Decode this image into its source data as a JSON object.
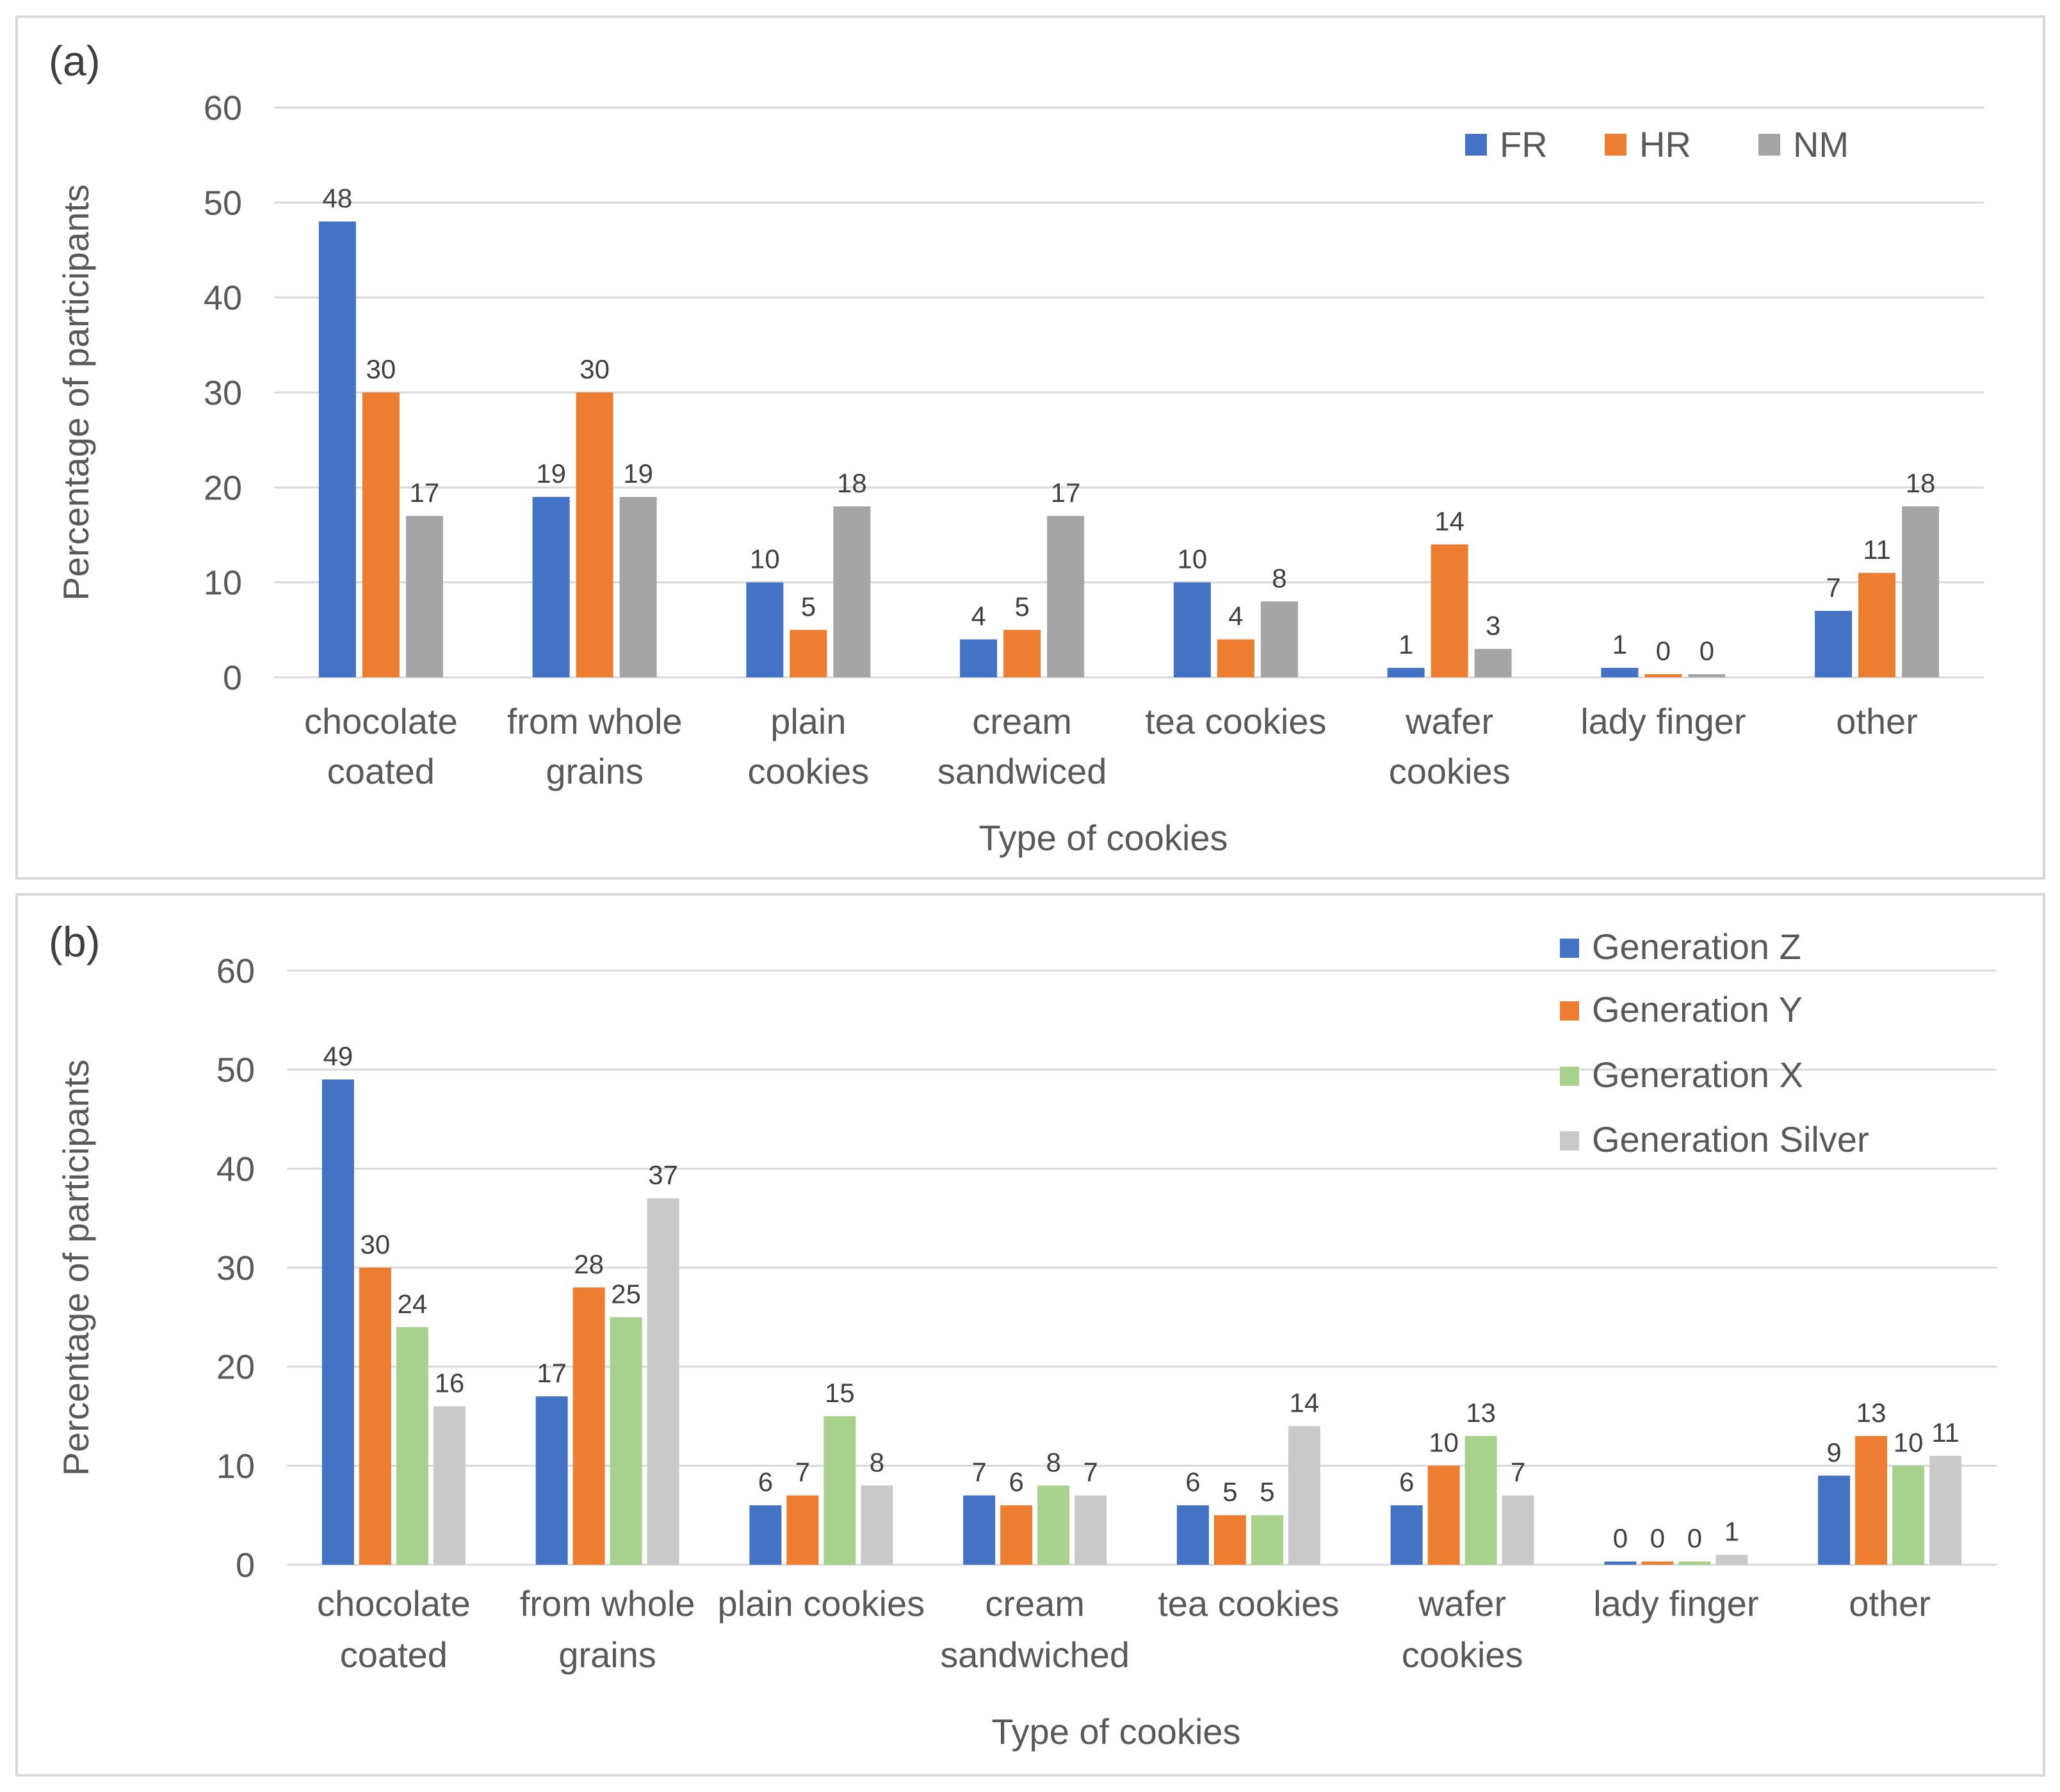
{
  "chart_data": [
    {
      "type": "bar",
      "panel_label": "(a)",
      "xlabel": "Type of cookies",
      "ylabel": "Percentage of participants",
      "ylim": [
        0,
        60
      ],
      "yticks": [
        "0",
        "10",
        "20",
        "30",
        "40",
        "50",
        "60"
      ],
      "legend_position": "top-right",
      "categories": [
        [
          "chocolate",
          "coated"
        ],
        [
          "from whole",
          "grains"
        ],
        [
          "plain",
          "cookies"
        ],
        [
          "cream",
          "sandwiced"
        ],
        [
          "tea cookies"
        ],
        [
          "wafer",
          "cookies"
        ],
        [
          "lady finger"
        ],
        [
          "other"
        ]
      ],
      "series": [
        {
          "name": "FR",
          "color": "#4472c4",
          "values": [
            48,
            19,
            10,
            4,
            10,
            1,
            1,
            7
          ]
        },
        {
          "name": "HR",
          "color": "#ed7d31",
          "values": [
            30,
            30,
            5,
            5,
            4,
            14,
            0,
            11
          ]
        },
        {
          "name": "NM",
          "color": "#a5a5a5",
          "values": [
            17,
            19,
            18,
            17,
            8,
            3,
            0,
            18
          ]
        }
      ]
    },
    {
      "type": "bar",
      "panel_label": "(b)",
      "xlabel": "Type of cookies",
      "ylabel": "Percentage of participants",
      "ylim": [
        0,
        60
      ],
      "yticks": [
        "0",
        "10",
        "20",
        "30",
        "40",
        "50",
        "60"
      ],
      "legend_position": "top-right",
      "categories": [
        [
          "chocolate",
          "coated"
        ],
        [
          "from whole",
          "grains"
        ],
        [
          "plain cookies"
        ],
        [
          "cream",
          "sandwiched"
        ],
        [
          "tea cookies"
        ],
        [
          "wafer",
          "cookies"
        ],
        [
          "lady finger"
        ],
        [
          "other"
        ]
      ],
      "series": [
        {
          "name": "Generation Z",
          "color": "#4472c4",
          "values": [
            49,
            17,
            6,
            7,
            6,
            6,
            0,
            9
          ]
        },
        {
          "name": "Generation Y",
          "color": "#ed7d31",
          "values": [
            30,
            28,
            7,
            6,
            5,
            10,
            0,
            13
          ]
        },
        {
          "name": "Generation X",
          "color": "#a9d18e",
          "values": [
            24,
            25,
            15,
            8,
            5,
            13,
            0,
            10
          ]
        },
        {
          "name": "Generation Silver",
          "color": "#c9c9c9",
          "values": [
            16,
            37,
            8,
            7,
            14,
            7,
            1,
            11
          ]
        }
      ]
    }
  ]
}
